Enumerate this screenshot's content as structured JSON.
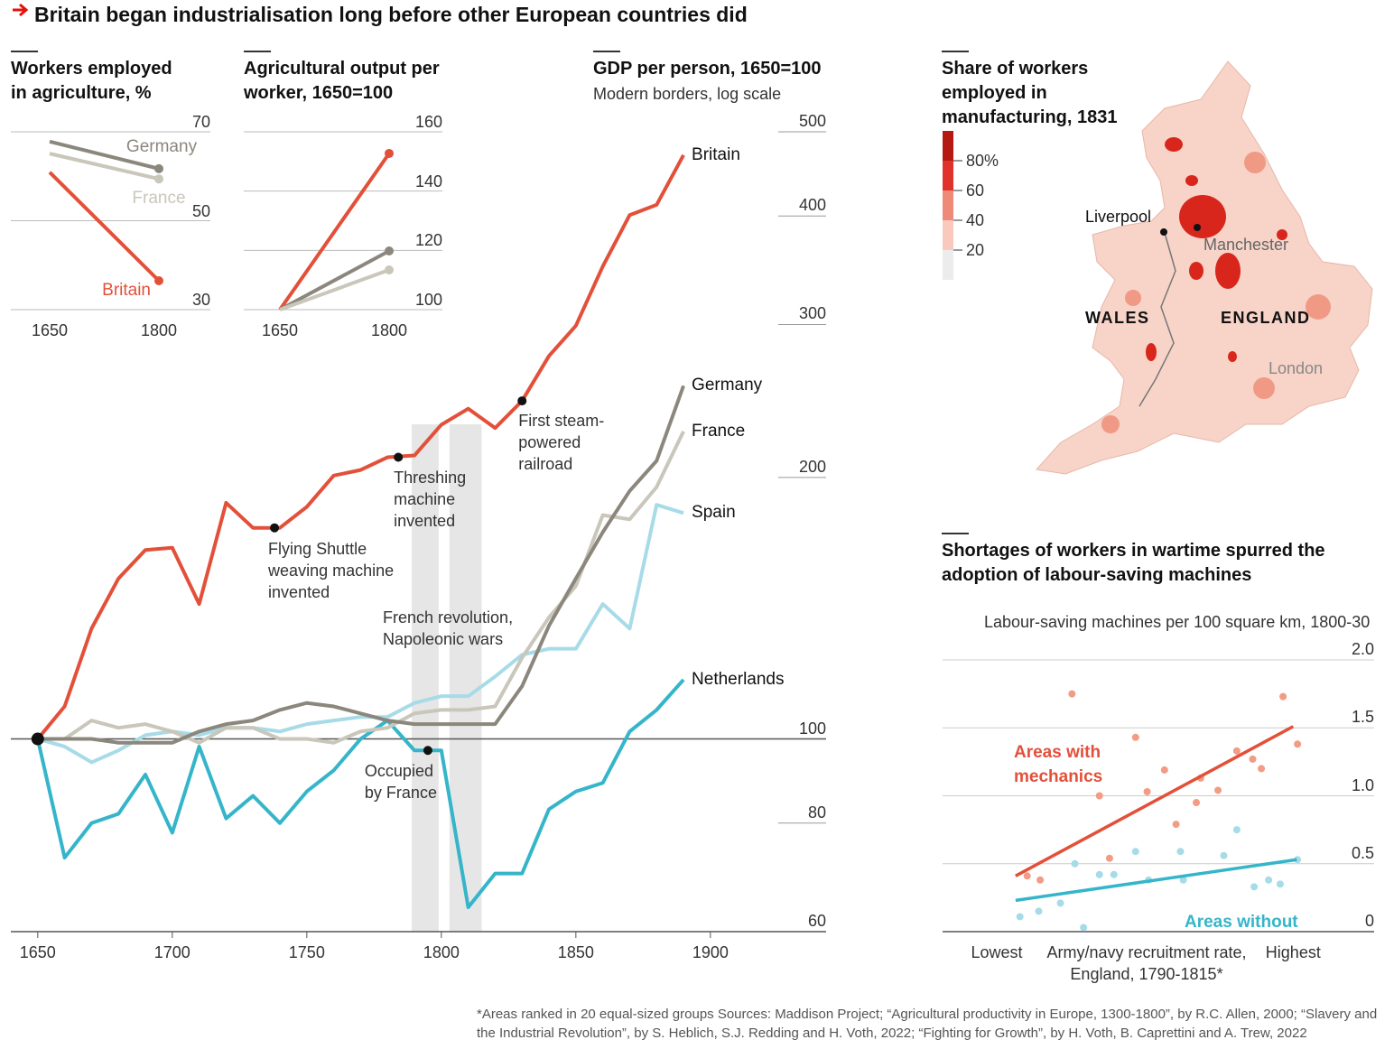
{
  "title": "Britain began industrialisation long before other European countries did",
  "footnote": "*Areas ranked in 20 equal-sized groups   Sources: Maddison Project; “Agricultural productivity in Europe, 1300-1800”, by R.C. Allen, 2000; “Slavery and the Industrial Revolution”, by S. Heblich, S.J. Redding and H. Voth, 2022; “Fighting for Growth”, by H. Voth, B. Caprettini and A. Trew, 2022",
  "chart_data": [
    {
      "type": "line",
      "title": "Workers employed in agriculture, %",
      "categories": [
        "1650",
        "1800"
      ],
      "series": [
        {
          "name": "Germany",
          "color": "#8c877d",
          "values": [
            67.8,
            61.7
          ]
        },
        {
          "name": "France",
          "color": "#c9c6ba",
          "values": [
            65.1,
            59.4
          ]
        },
        {
          "name": "Britain",
          "color": "#e3503a",
          "values": [
            60.9,
            36.5
          ]
        }
      ],
      "ylim": [
        30,
        70
      ],
      "yticks": [
        70,
        50,
        30
      ],
      "grid": true
    },
    {
      "type": "line",
      "title": "Agricultural output per worker, 1650=100",
      "categories": [
        "1650",
        "1800"
      ],
      "series": [
        {
          "name": "Britain",
          "color": "#e3503a",
          "values": [
            100,
            152.7
          ]
        },
        {
          "name": "Germany",
          "color": "#8c877d",
          "values": [
            100,
            119.8
          ]
        },
        {
          "name": "France",
          "color": "#c9c6ba",
          "values": [
            100,
            113.4
          ]
        }
      ],
      "ylim": [
        100,
        160
      ],
      "yticks": [
        160,
        140,
        120,
        100
      ],
      "grid": true
    },
    {
      "type": "line",
      "title": "GDP per person, 1650=100",
      "subtitle": "Modern borders, log scale",
      "x": [
        1650,
        1660,
        1670,
        1680,
        1690,
        1700,
        1710,
        1720,
        1730,
        1740,
        1750,
        1760,
        1770,
        1780,
        1790,
        1800,
        1810,
        1820,
        1830,
        1840,
        1850,
        1860,
        1870,
        1880,
        1890
      ],
      "series": [
        {
          "name": "Britain",
          "color": "#e3503a",
          "values": [
            100,
            109,
            134,
            153,
            165,
            166,
            143,
            187,
            175,
            175,
            185,
            201,
            204,
            211,
            212,
            230,
            240,
            228,
            245,
            276,
            299,
            350,
            401,
            412,
            470
          ]
        },
        {
          "name": "Germany",
          "color": "#8c877d",
          "values": [
            100,
            100,
            100,
            99,
            99,
            99,
            102,
            104,
            105,
            108,
            110,
            109,
            107,
            105,
            104,
            104,
            104,
            104,
            115,
            135,
            153,
            173,
            193,
            209,
            255
          ]
        },
        {
          "name": "France",
          "color": "#c9c6ba",
          "values": [
            100,
            100,
            105,
            103,
            104,
            102,
            99,
            103,
            103,
            100,
            100,
            99,
            102,
            103,
            107,
            108,
            108,
            109,
            124,
            138,
            150,
            181,
            179,
            195,
            226
          ]
        },
        {
          "name": "Spain",
          "color": "#a8dbe8",
          "values": [
            100,
            98,
            94,
            97,
            101,
            102,
            101,
            103,
            103,
            102,
            104,
            105,
            106,
            106,
            110,
            112,
            112,
            118,
            125,
            127,
            127,
            143,
            134,
            186,
            182
          ]
        },
        {
          "name": "Netherlands",
          "color": "#35b5c9",
          "values": [
            100,
            73,
            80,
            82,
            91,
            78,
            98,
            81,
            86,
            80,
            87,
            92,
            100,
            105,
            97,
            97,
            64,
            70,
            70,
            83,
            87,
            89,
            102,
            108,
            117
          ]
        }
      ],
      "xlim": [
        1640,
        1943
      ],
      "xticks": [
        1650,
        1700,
        1750,
        1800,
        1850,
        1900
      ],
      "ylim": [
        60,
        500
      ],
      "yticks": [
        500,
        400,
        300,
        200,
        100,
        80,
        60
      ],
      "log_scale": true,
      "bands": [
        [
          1789,
          1799
        ],
        [
          1803,
          1815
        ]
      ],
      "band_label": [
        "French revolution,",
        "Napoleonic wars"
      ],
      "annotations": [
        {
          "text": [
            "Flying Shuttle",
            "weaving machine",
            "invented"
          ],
          "x": 1738,
          "y": 175
        },
        {
          "text": [
            "Threshing",
            "machine",
            "invented"
          ],
          "x": 1784,
          "y": 211
        },
        {
          "text": [
            "First steam-",
            "powered",
            "railroad"
          ],
          "x": 1830,
          "y": 245
        },
        {
          "text": [
            "Occupied",
            "by France"
          ],
          "x": 1795,
          "y": 97
        }
      ]
    },
    {
      "type": "map",
      "title": "Share of workers employed in manufacturing, 1831",
      "clim": [
        0,
        100
      ],
      "colors": [
        "#ececec",
        "#f9c9bd",
        "#f08a78",
        "#e0322a",
        "#b51a12"
      ],
      "legend_ticks": [
        {
          "value": 80,
          "label": "80%"
        },
        60,
        40,
        20
      ],
      "places": [
        "Liverpool",
        "Manchester",
        "WALES",
        "ENGLAND",
        "London"
      ]
    },
    {
      "type": "scatter",
      "title": "Shortages of workers in wartime spurred the adoption of labour-saving machines",
      "subtitle": "Labour-saving machines per 100 square km, 1800-30",
      "x_label": "Army/navy recruitment rate, England, 1790-1815*",
      "series": [
        {
          "name": "Areas with mechanics",
          "color": "#e3503a",
          "point_color": "#f29b85",
          "x": [
            1.1,
            2.0,
            4.2,
            6.1,
            6.8,
            8.6,
            9.4,
            10.6,
            11.4,
            12.8,
            13.1,
            14.3,
            15.6,
            16.7,
            17.3,
            18.8,
            19.8
          ],
          "values": [
            0.41,
            0.38,
            1.75,
            1.0,
            0.54,
            1.43,
            1.03,
            1.19,
            0.79,
            0.95,
            1.13,
            1.04,
            1.33,
            1.27,
            1.2,
            1.73,
            1.38
          ],
          "fit_x": [
            0.3,
            19.5
          ],
          "fit_y": [
            0.41,
            1.51
          ]
        },
        {
          "name": "Areas without",
          "color": "#35b5c9",
          "point_color": "#a6dbe8",
          "x": [
            0.6,
            1.9,
            3.4,
            4.4,
            5.0,
            6.1,
            7.1,
            8.6,
            9.5,
            11.7,
            11.9,
            14.7,
            15.6,
            16.8,
            17.8,
            18.6,
            19.8
          ],
          "values": [
            0.11,
            0.15,
            0.21,
            0.5,
            0.03,
            0.42,
            0.42,
            0.59,
            0.38,
            0.59,
            0.38,
            0.56,
            0.75,
            0.33,
            0.38,
            0.35,
            0.53
          ],
          "fit_x": [
            0.3,
            19.75
          ],
          "fit_y": [
            0.23,
            0.53
          ]
        }
      ],
      "xlim": [
        -4.75,
        25.1
      ],
      "xticks": [
        {
          "value": -1,
          "label": "Lowest"
        },
        {
          "value": 19.5,
          "label": "Highest"
        }
      ],
      "ylim": [
        0,
        2
      ],
      "yticks": [
        {
          "value": 2,
          "label": "2.0"
        },
        1.5,
        {
          "value": 1,
          "label": "1.0"
        },
        0.5,
        0
      ],
      "grid": true
    }
  ]
}
